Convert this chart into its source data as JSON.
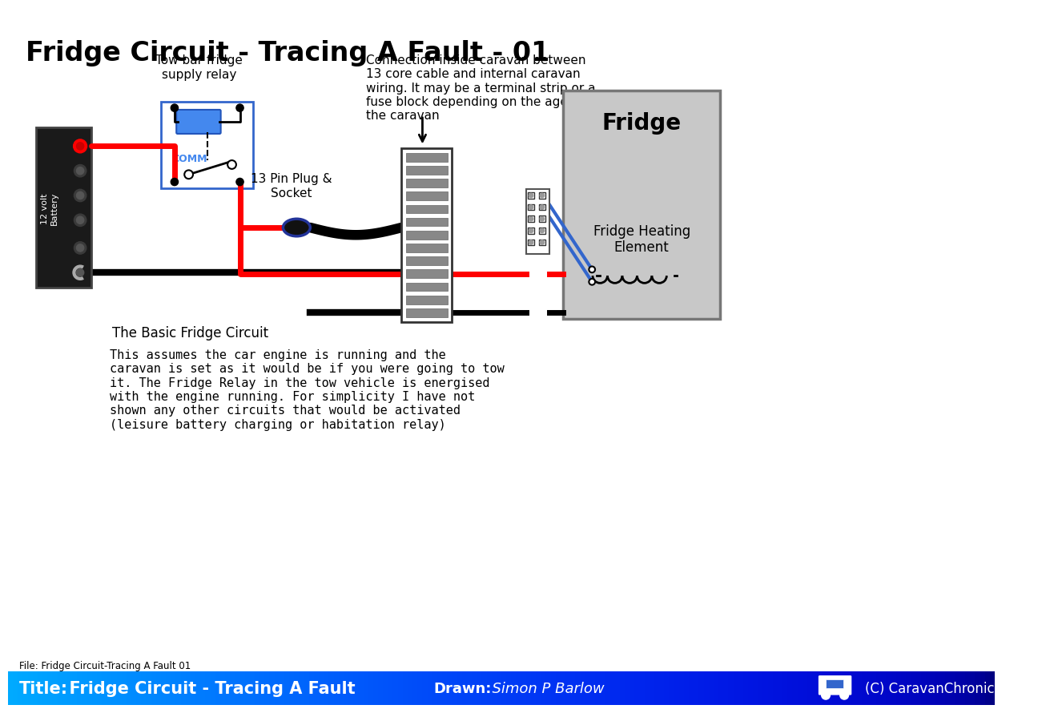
{
  "title": "Fridge Circuit - Tracing A Fault - 01",
  "bg_color": "#ffffff",
  "footer_title_label": "Title:",
  "footer_title_value": "  Fridge Circuit - Tracing A Fault",
  "footer_drawn_label": "Drawn:",
  "footer_drawn_value": "  Simon P Barlow",
  "footer_copyright": "(C) CaravanChronicles.com",
  "footer_file": "File: Fridge Circuit-Tracing A Fault 01",
  "annotation_relay": "Tow bar fridge\nsupply relay",
  "annotation_connection": "Connection inside caravan between\n13 core cable and internal caravan\nwiring. It may be a terminal strip or a\nfuse block depending on the age of\nthe caravan",
  "annotation_plug": "13 Pin Plug &\nSocket",
  "annotation_basic": "The Basic Fridge Circuit",
  "annotation_description": "This assumes the car engine is running and the\ncaravan is set as it would be if you were going to tow\nit. The Fridge Relay in the tow vehicle is energised\nwith the engine running. For simplicity I have not\nshown any other circuits that would be activated\n(leisure battery charging or habitation relay)",
  "fridge_label": "Fridge",
  "heating_label": "Fridge Heating\nElement",
  "comm_label": "COMM"
}
